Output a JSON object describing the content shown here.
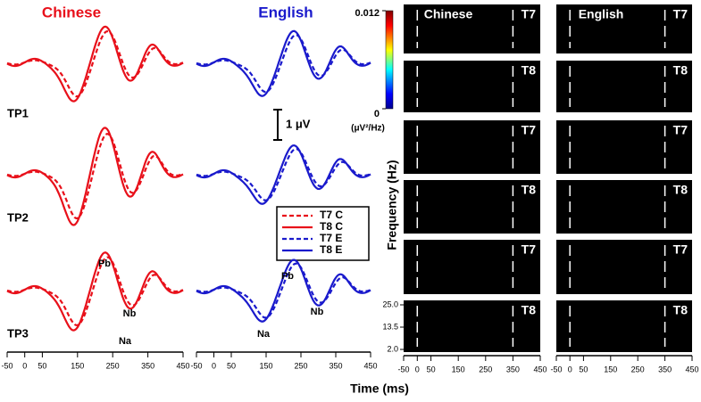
{
  "erp": {
    "columns": [
      "Chinese",
      "English"
    ],
    "rows": [
      "TP1",
      "TP2",
      "TP3"
    ],
    "scale_label": "1 μV",
    "legend": [
      "T7 C",
      "T8 C",
      "T7 E",
      "T8 E"
    ],
    "peaks": {
      "na": "Na",
      "pb": "Pb",
      "nb": "Nb"
    }
  },
  "tf": {
    "columns": [
      "Chinese",
      "English"
    ],
    "electrodes": [
      "T7",
      "T8"
    ],
    "frequency_label": "Frequency (Hz)",
    "frequency_ticks": [
      {
        "value": 25,
        "label": "25.0"
      },
      {
        "value": 13.5,
        "label": "13.5"
      },
      {
        "value": 2,
        "label": "2.0"
      }
    ],
    "frequency_lim": [
      2,
      25
    ],
    "colorbar_ticks": [
      0,
      0.012
    ],
    "colorbar_lim": [
      0,
      0.012
    ],
    "colorbar_unit": "(μV²/Hz)"
  },
  "time_axis": {
    "label": "Time (ms)",
    "lim": [
      -50,
      450
    ],
    "ticks": [
      -50,
      0,
      50,
      150,
      250,
      350,
      450
    ]
  }
}
